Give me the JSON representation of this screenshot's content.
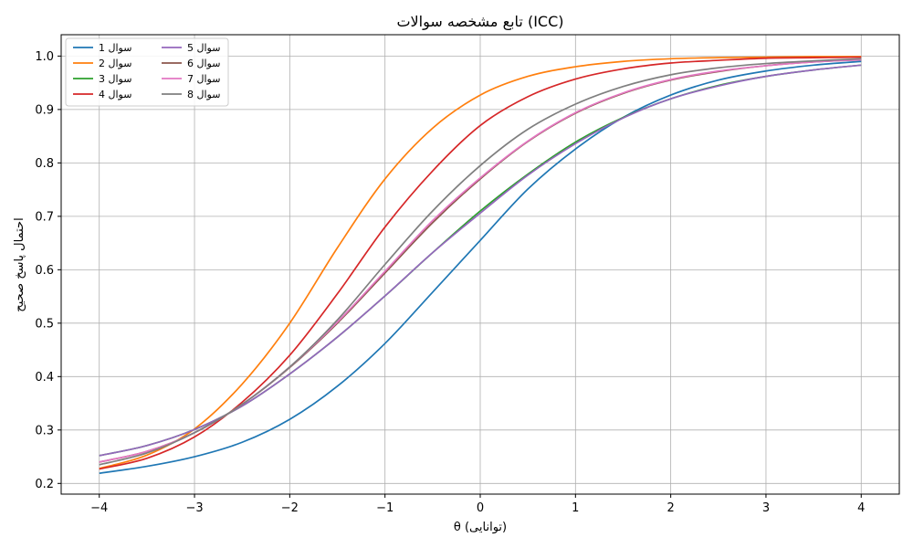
{
  "chart_data": {
    "type": "line",
    "title": "تابع مشخصه سوالات (ICC)",
    "xlabel": "θ (توانایی)",
    "ylabel": "احتمال پاسخ صحیح",
    "xlim": [
      -4.4,
      4.4
    ],
    "ylim": [
      0.18,
      1.04
    ],
    "xticks": [
      -4,
      -3,
      -2,
      -1,
      0,
      1,
      2,
      3,
      4
    ],
    "yticks": [
      0.2,
      0.3,
      0.4,
      0.5,
      0.6,
      0.7,
      0.8,
      0.9,
      1.0
    ],
    "grid": true,
    "legend_position": "top-left",
    "legend_columns": 2,
    "x": [
      -4,
      -3.5,
      -3,
      -2.5,
      -2,
      -1.5,
      -1,
      -0.5,
      0,
      0.5,
      1,
      1.5,
      2,
      2.5,
      3,
      3.5,
      4
    ],
    "series": [
      {
        "name": "سوال 1",
        "color": "#1f77b4",
        "values": [
          0.219,
          0.232,
          0.25,
          0.277,
          0.32,
          0.382,
          0.462,
          0.558,
          0.655,
          0.751,
          0.826,
          0.885,
          0.927,
          0.955,
          0.972,
          0.983,
          0.99
        ]
      },
      {
        "name": "سوال 2",
        "color": "#ff7f0e",
        "values": [
          0.228,
          0.253,
          0.302,
          0.386,
          0.5,
          0.641,
          0.77,
          0.865,
          0.927,
          0.962,
          0.98,
          0.99,
          0.995,
          0.997,
          0.998,
          0.999,
          0.999
        ]
      },
      {
        "name": "سوال 3",
        "color": "#2ca02c",
        "values": [
          0.252,
          0.271,
          0.301,
          0.345,
          0.405,
          0.474,
          0.551,
          0.632,
          0.71,
          0.779,
          0.839,
          0.885,
          0.92,
          0.945,
          0.962,
          0.974,
          0.983
        ]
      },
      {
        "name": "سوال 4",
        "color": "#d62728",
        "values": [
          0.227,
          0.247,
          0.287,
          0.352,
          0.44,
          0.555,
          0.68,
          0.785,
          0.87,
          0.924,
          0.957,
          0.976,
          0.987,
          0.992,
          0.996,
          0.997,
          0.998
        ]
      },
      {
        "name": "سوال 5",
        "color": "#9467bd",
        "values": [
          0.252,
          0.271,
          0.301,
          0.345,
          0.405,
          0.474,
          0.551,
          0.632,
          0.706,
          0.777,
          0.836,
          0.884,
          0.92,
          0.944,
          0.962,
          0.974,
          0.983
        ]
      },
      {
        "name": "سوال 6",
        "color": "#8c564b",
        "values": [
          0.24,
          0.26,
          0.295,
          0.348,
          0.417,
          0.5,
          0.594,
          0.688,
          0.77,
          0.84,
          0.893,
          0.93,
          0.955,
          0.971,
          0.982,
          0.989,
          0.993
        ]
      },
      {
        "name": "سوال 7",
        "color": "#e377c2",
        "values": [
          0.24,
          0.26,
          0.295,
          0.348,
          0.418,
          0.502,
          0.597,
          0.692,
          0.772,
          0.841,
          0.894,
          0.931,
          0.956,
          0.972,
          0.982,
          0.989,
          0.993
        ]
      },
      {
        "name": "سوال 8",
        "color": "#7f7f7f",
        "values": [
          0.235,
          0.257,
          0.295,
          0.348,
          0.418,
          0.506,
          0.61,
          0.71,
          0.795,
          0.863,
          0.91,
          0.943,
          0.965,
          0.978,
          0.986,
          0.991,
          0.995
        ]
      }
    ]
  }
}
